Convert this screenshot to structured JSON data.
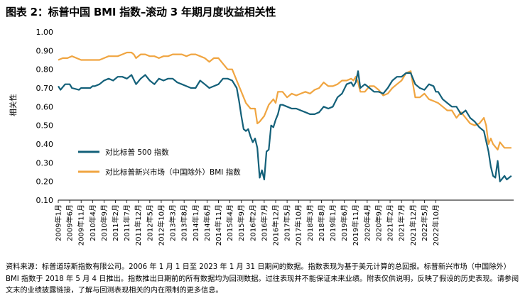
{
  "title": "图表 2：标普中国 BMI 指数–滚动 3 年期月度收益相关性",
  "footnote": "资料来源：标普道琼斯指数有限公司。2006 年 1 月 1 日至 2023 年 1 月 31 日期间的数据。指数表现为基于美元计算的总回报。标普新兴市场（中国除外）BMI 指数于 2018 年 5 月 4 日推出。指数推出日期前的所有数据均为回测数据。过往表现并不能保证未来业绩。附表仅供说明，反映了假设的历史表现。请参阅文末的业绩披露链接，了解与回测表现相关的内在限制的更多信息。",
  "colors": {
    "sp500": "#136079",
    "em_ex_china": "#f0a541",
    "axis": "#000000"
  },
  "chart_data": {
    "type": "line",
    "ylabel": "相关性",
    "ylim": [
      0.1,
      1.0
    ],
    "yticks": [
      1.0,
      0.9,
      0.8,
      0.7,
      0.6,
      0.5,
      0.4,
      0.3,
      0.2,
      0.1
    ],
    "ytick_labels": [
      "1.00",
      "0.90",
      "0.80",
      "0.70",
      "0.60",
      "0.50",
      "0.40",
      "0.30",
      "0.20",
      "0.10"
    ],
    "xticks": [
      "2009年1月",
      "2009年6月",
      "2009年11月",
      "2010年4月",
      "2010年9月",
      "2011年2月",
      "2011年7月",
      "2011年12月",
      "2012年5月",
      "2012年10月",
      "2013年3月",
      "2013年8月",
      "2014年1月",
      "2014年6月",
      "2014年11月",
      "2015年4月",
      "2015年9月",
      "2016年2月",
      "2016年7月",
      "2016年12月",
      "2017年5月",
      "2017年10月",
      "2018年3月",
      "2018年8月",
      "2019年1月",
      "2019年6月",
      "2019年11月",
      "2020年4月",
      "2020年9月",
      "2021年2月",
      "2021年7月",
      "2021年12月",
      "2022年5月",
      "2022年10月"
    ],
    "legend": "left",
    "series": [
      {
        "name": "对比标普 500 指数",
        "color": "#136079",
        "points": [
          [
            0,
            0.71
          ],
          [
            1,
            0.69
          ],
          [
            3,
            0.72
          ],
          [
            5,
            0.72
          ],
          [
            6,
            0.7
          ],
          [
            9,
            0.69
          ],
          [
            10,
            0.7
          ],
          [
            12,
            0.7
          ],
          [
            14,
            0.7
          ],
          [
            15,
            0.71
          ],
          [
            16,
            0.71
          ],
          [
            18,
            0.72
          ],
          [
            20,
            0.74
          ],
          [
            22,
            0.75
          ],
          [
            24,
            0.74
          ],
          [
            26,
            0.76
          ],
          [
            28,
            0.76
          ],
          [
            30,
            0.75
          ],
          [
            32,
            0.77
          ],
          [
            34,
            0.72
          ],
          [
            36,
            0.75
          ],
          [
            38,
            0.77
          ],
          [
            40,
            0.74
          ],
          [
            42,
            0.72
          ],
          [
            44,
            0.75
          ],
          [
            46,
            0.74
          ],
          [
            48,
            0.75
          ],
          [
            50,
            0.75
          ],
          [
            52,
            0.73
          ],
          [
            54,
            0.72
          ],
          [
            56,
            0.71
          ],
          [
            58,
            0.7
          ],
          [
            60,
            0.7
          ],
          [
            62,
            0.74
          ],
          [
            64,
            0.72
          ],
          [
            66,
            0.7
          ],
          [
            68,
            0.71
          ],
          [
            70,
            0.72
          ],
          [
            72,
            0.75
          ],
          [
            74,
            0.75
          ],
          [
            76,
            0.74
          ],
          [
            78,
            0.7
          ],
          [
            79,
            0.63
          ],
          [
            80,
            0.55
          ],
          [
            81,
            0.48
          ],
          [
            82,
            0.47
          ],
          [
            83,
            0.48
          ],
          [
            84,
            0.44
          ],
          [
            85,
            0.41
          ],
          [
            86,
            0.43
          ],
          [
            87,
            0.38
          ],
          [
            88,
            0.22
          ],
          [
            89,
            0.26
          ],
          [
            90,
            0.21
          ],
          [
            91,
            0.36
          ],
          [
            92,
            0.37
          ],
          [
            93,
            0.5
          ],
          [
            94,
            0.49
          ],
          [
            95,
            0.53
          ],
          [
            96,
            0.56
          ],
          [
            97,
            0.61
          ],
          [
            98,
            0.61
          ],
          [
            100,
            0.6
          ],
          [
            102,
            0.59
          ],
          [
            104,
            0.59
          ],
          [
            106,
            0.58
          ],
          [
            108,
            0.57
          ],
          [
            110,
            0.56
          ],
          [
            112,
            0.56
          ],
          [
            114,
            0.57
          ],
          [
            116,
            0.6
          ],
          [
            118,
            0.59
          ],
          [
            120,
            0.6
          ],
          [
            122,
            0.65
          ],
          [
            124,
            0.67
          ],
          [
            126,
            0.72
          ],
          [
            128,
            0.73
          ],
          [
            129,
            0.71
          ],
          [
            130,
            0.73
          ],
          [
            131,
            0.79
          ],
          [
            132,
            0.7
          ],
          [
            134,
            0.72
          ],
          [
            136,
            0.7
          ],
          [
            138,
            0.68
          ],
          [
            140,
            0.68
          ],
          [
            142,
            0.67
          ],
          [
            144,
            0.7
          ],
          [
            146,
            0.74
          ],
          [
            148,
            0.76
          ],
          [
            150,
            0.76
          ],
          [
            152,
            0.78
          ],
          [
            154,
            0.78
          ],
          [
            156,
            0.72
          ],
          [
            158,
            0.7
          ],
          [
            160,
            0.69
          ],
          [
            162,
            0.72
          ],
          [
            164,
            0.71
          ],
          [
            165,
            0.68
          ],
          [
            166,
            0.68
          ],
          [
            168,
            0.64
          ],
          [
            170,
            0.62
          ],
          [
            172,
            0.6
          ],
          [
            174,
            0.6
          ],
          [
            176,
            0.56
          ],
          [
            178,
            0.58
          ],
          [
            180,
            0.54
          ],
          [
            182,
            0.52
          ],
          [
            184,
            0.49
          ],
          [
            186,
            0.47
          ],
          [
            188,
            0.36
          ],
          [
            189,
            0.28
          ],
          [
            190,
            0.23
          ],
          [
            191,
            0.22
          ],
          [
            192,
            0.31
          ],
          [
            193,
            0.2
          ],
          [
            195,
            0.23
          ],
          [
            196,
            0.21
          ],
          [
            198,
            0.23
          ]
        ]
      },
      {
        "name": "对比标普新兴市场（中国除外）BMI 指数",
        "color": "#f0a541",
        "points": [
          [
            0,
            0.85
          ],
          [
            2,
            0.86
          ],
          [
            4,
            0.86
          ],
          [
            6,
            0.87
          ],
          [
            8,
            0.86
          ],
          [
            10,
            0.85
          ],
          [
            12,
            0.85
          ],
          [
            14,
            0.85
          ],
          [
            16,
            0.85
          ],
          [
            18,
            0.85
          ],
          [
            20,
            0.86
          ],
          [
            22,
            0.87
          ],
          [
            24,
            0.87
          ],
          [
            26,
            0.87
          ],
          [
            28,
            0.88
          ],
          [
            30,
            0.89
          ],
          [
            32,
            0.89
          ],
          [
            33,
            0.88
          ],
          [
            34,
            0.86
          ],
          [
            36,
            0.88
          ],
          [
            38,
            0.88
          ],
          [
            40,
            0.87
          ],
          [
            42,
            0.87
          ],
          [
            44,
            0.86
          ],
          [
            46,
            0.87
          ],
          [
            48,
            0.87
          ],
          [
            50,
            0.88
          ],
          [
            52,
            0.88
          ],
          [
            54,
            0.88
          ],
          [
            56,
            0.87
          ],
          [
            58,
            0.88
          ],
          [
            60,
            0.88
          ],
          [
            62,
            0.87
          ],
          [
            64,
            0.86
          ],
          [
            66,
            0.84
          ],
          [
            68,
            0.86
          ],
          [
            70,
            0.86
          ],
          [
            72,
            0.83
          ],
          [
            74,
            0.8
          ],
          [
            76,
            0.8
          ],
          [
            78,
            0.74
          ],
          [
            80,
            0.68
          ],
          [
            82,
            0.62
          ],
          [
            84,
            0.59
          ],
          [
            86,
            0.59
          ],
          [
            87,
            0.51
          ],
          [
            88,
            0.52
          ],
          [
            90,
            0.55
          ],
          [
            92,
            0.61
          ],
          [
            94,
            0.64
          ],
          [
            95,
            0.62
          ],
          [
            96,
            0.68
          ],
          [
            98,
            0.68
          ],
          [
            100,
            0.65
          ],
          [
            102,
            0.67
          ],
          [
            104,
            0.66
          ],
          [
            106,
            0.67
          ],
          [
            108,
            0.68
          ],
          [
            110,
            0.67
          ],
          [
            112,
            0.69
          ],
          [
            114,
            0.7
          ],
          [
            116,
            0.73
          ],
          [
            118,
            0.71
          ],
          [
            120,
            0.71
          ],
          [
            122,
            0.72
          ],
          [
            124,
            0.74
          ],
          [
            126,
            0.74
          ],
          [
            128,
            0.75
          ],
          [
            129,
            0.74
          ],
          [
            130,
            0.76
          ],
          [
            131,
            0.73
          ],
          [
            132,
            0.68
          ],
          [
            134,
            0.68
          ],
          [
            136,
            0.71
          ],
          [
            138,
            0.71
          ],
          [
            140,
            0.69
          ],
          [
            142,
            0.66
          ],
          [
            144,
            0.67
          ],
          [
            146,
            0.7
          ],
          [
            148,
            0.72
          ],
          [
            150,
            0.74
          ],
          [
            152,
            0.78
          ],
          [
            154,
            0.79
          ],
          [
            156,
            0.65
          ],
          [
            158,
            0.65
          ],
          [
            160,
            0.67
          ],
          [
            162,
            0.64
          ],
          [
            164,
            0.63
          ],
          [
            166,
            0.62
          ],
          [
            168,
            0.6
          ],
          [
            170,
            0.58
          ],
          [
            172,
            0.58
          ],
          [
            174,
            0.54
          ],
          [
            176,
            0.57
          ],
          [
            178,
            0.54
          ],
          [
            180,
            0.51
          ],
          [
            182,
            0.5
          ],
          [
            184,
            0.51
          ],
          [
            186,
            0.54
          ],
          [
            187,
            0.5
          ],
          [
            188,
            0.4
          ],
          [
            189,
            0.43
          ],
          [
            190,
            0.4
          ],
          [
            192,
            0.37
          ],
          [
            193,
            0.41
          ],
          [
            195,
            0.38
          ],
          [
            196,
            0.38
          ],
          [
            198,
            0.38
          ]
        ]
      }
    ]
  }
}
